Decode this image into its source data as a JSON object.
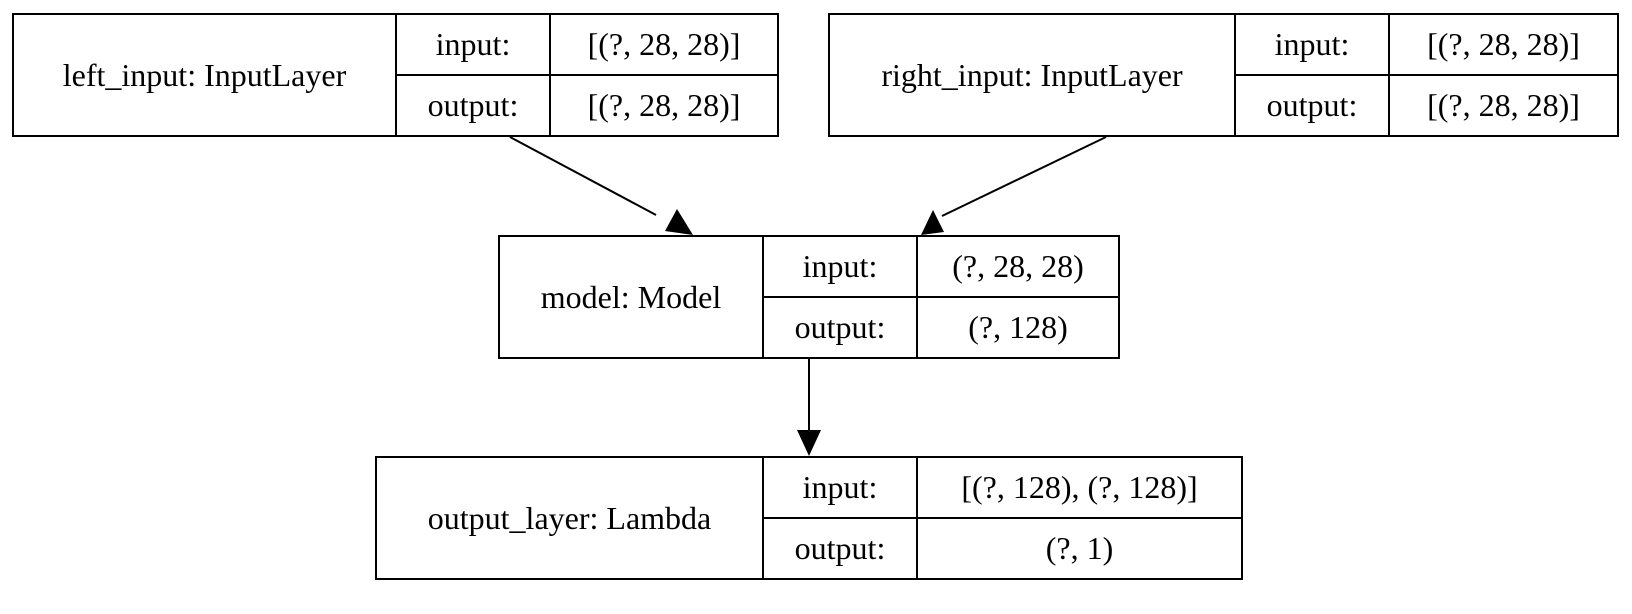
{
  "diagram": {
    "nodes": [
      {
        "id": "left_input",
        "name": "left_input: InputLayer",
        "input_label": "input:",
        "input_value": "[(?, 28, 28)]",
        "output_label": "output:",
        "output_value": "[(?, 28, 28)]"
      },
      {
        "id": "right_input",
        "name": "right_input: InputLayer",
        "input_label": "input:",
        "input_value": "[(?, 28, 28)]",
        "output_label": "output:",
        "output_value": "[(?, 28, 28)]"
      },
      {
        "id": "model",
        "name": "model: Model",
        "input_label": "input:",
        "input_value": "(?, 28, 28)",
        "output_label": "output:",
        "output_value": "(?, 128)"
      },
      {
        "id": "output_layer",
        "name": "output_layer: Lambda",
        "input_label": "input:",
        "input_value": "[(?, 128), (?, 128)]",
        "output_label": "output:",
        "output_value": "(?, 1)"
      }
    ],
    "edges": [
      {
        "from": "left_input",
        "to": "model"
      },
      {
        "from": "right_input",
        "to": "model"
      },
      {
        "from": "model",
        "to": "output_layer"
      }
    ]
  }
}
